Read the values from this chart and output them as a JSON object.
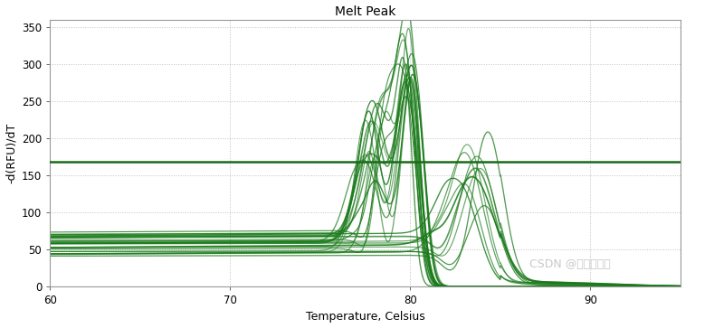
{
  "title": "Melt Peak",
  "xlabel": "Temperature, Celsius",
  "ylabel": "-d(RFU)/dT",
  "xlim": [
    60,
    95
  ],
  "ylim": [
    0,
    360
  ],
  "yticks": [
    0,
    50,
    100,
    150,
    200,
    250,
    300,
    350
  ],
  "xticks": [
    60,
    70,
    80,
    90
  ],
  "hline_y": 168,
  "bg_color": "#ffffff",
  "grid_color": "#b0b0b0",
  "line_color": "#1a7a1a",
  "hline_color": "#1a6b1a",
  "watermark": "CSDN @生信小博士",
  "n_curves_group1": 18,
  "n_curves_group2": 10,
  "figwidth": 7.89,
  "figheight": 3.63,
  "dpi": 100
}
